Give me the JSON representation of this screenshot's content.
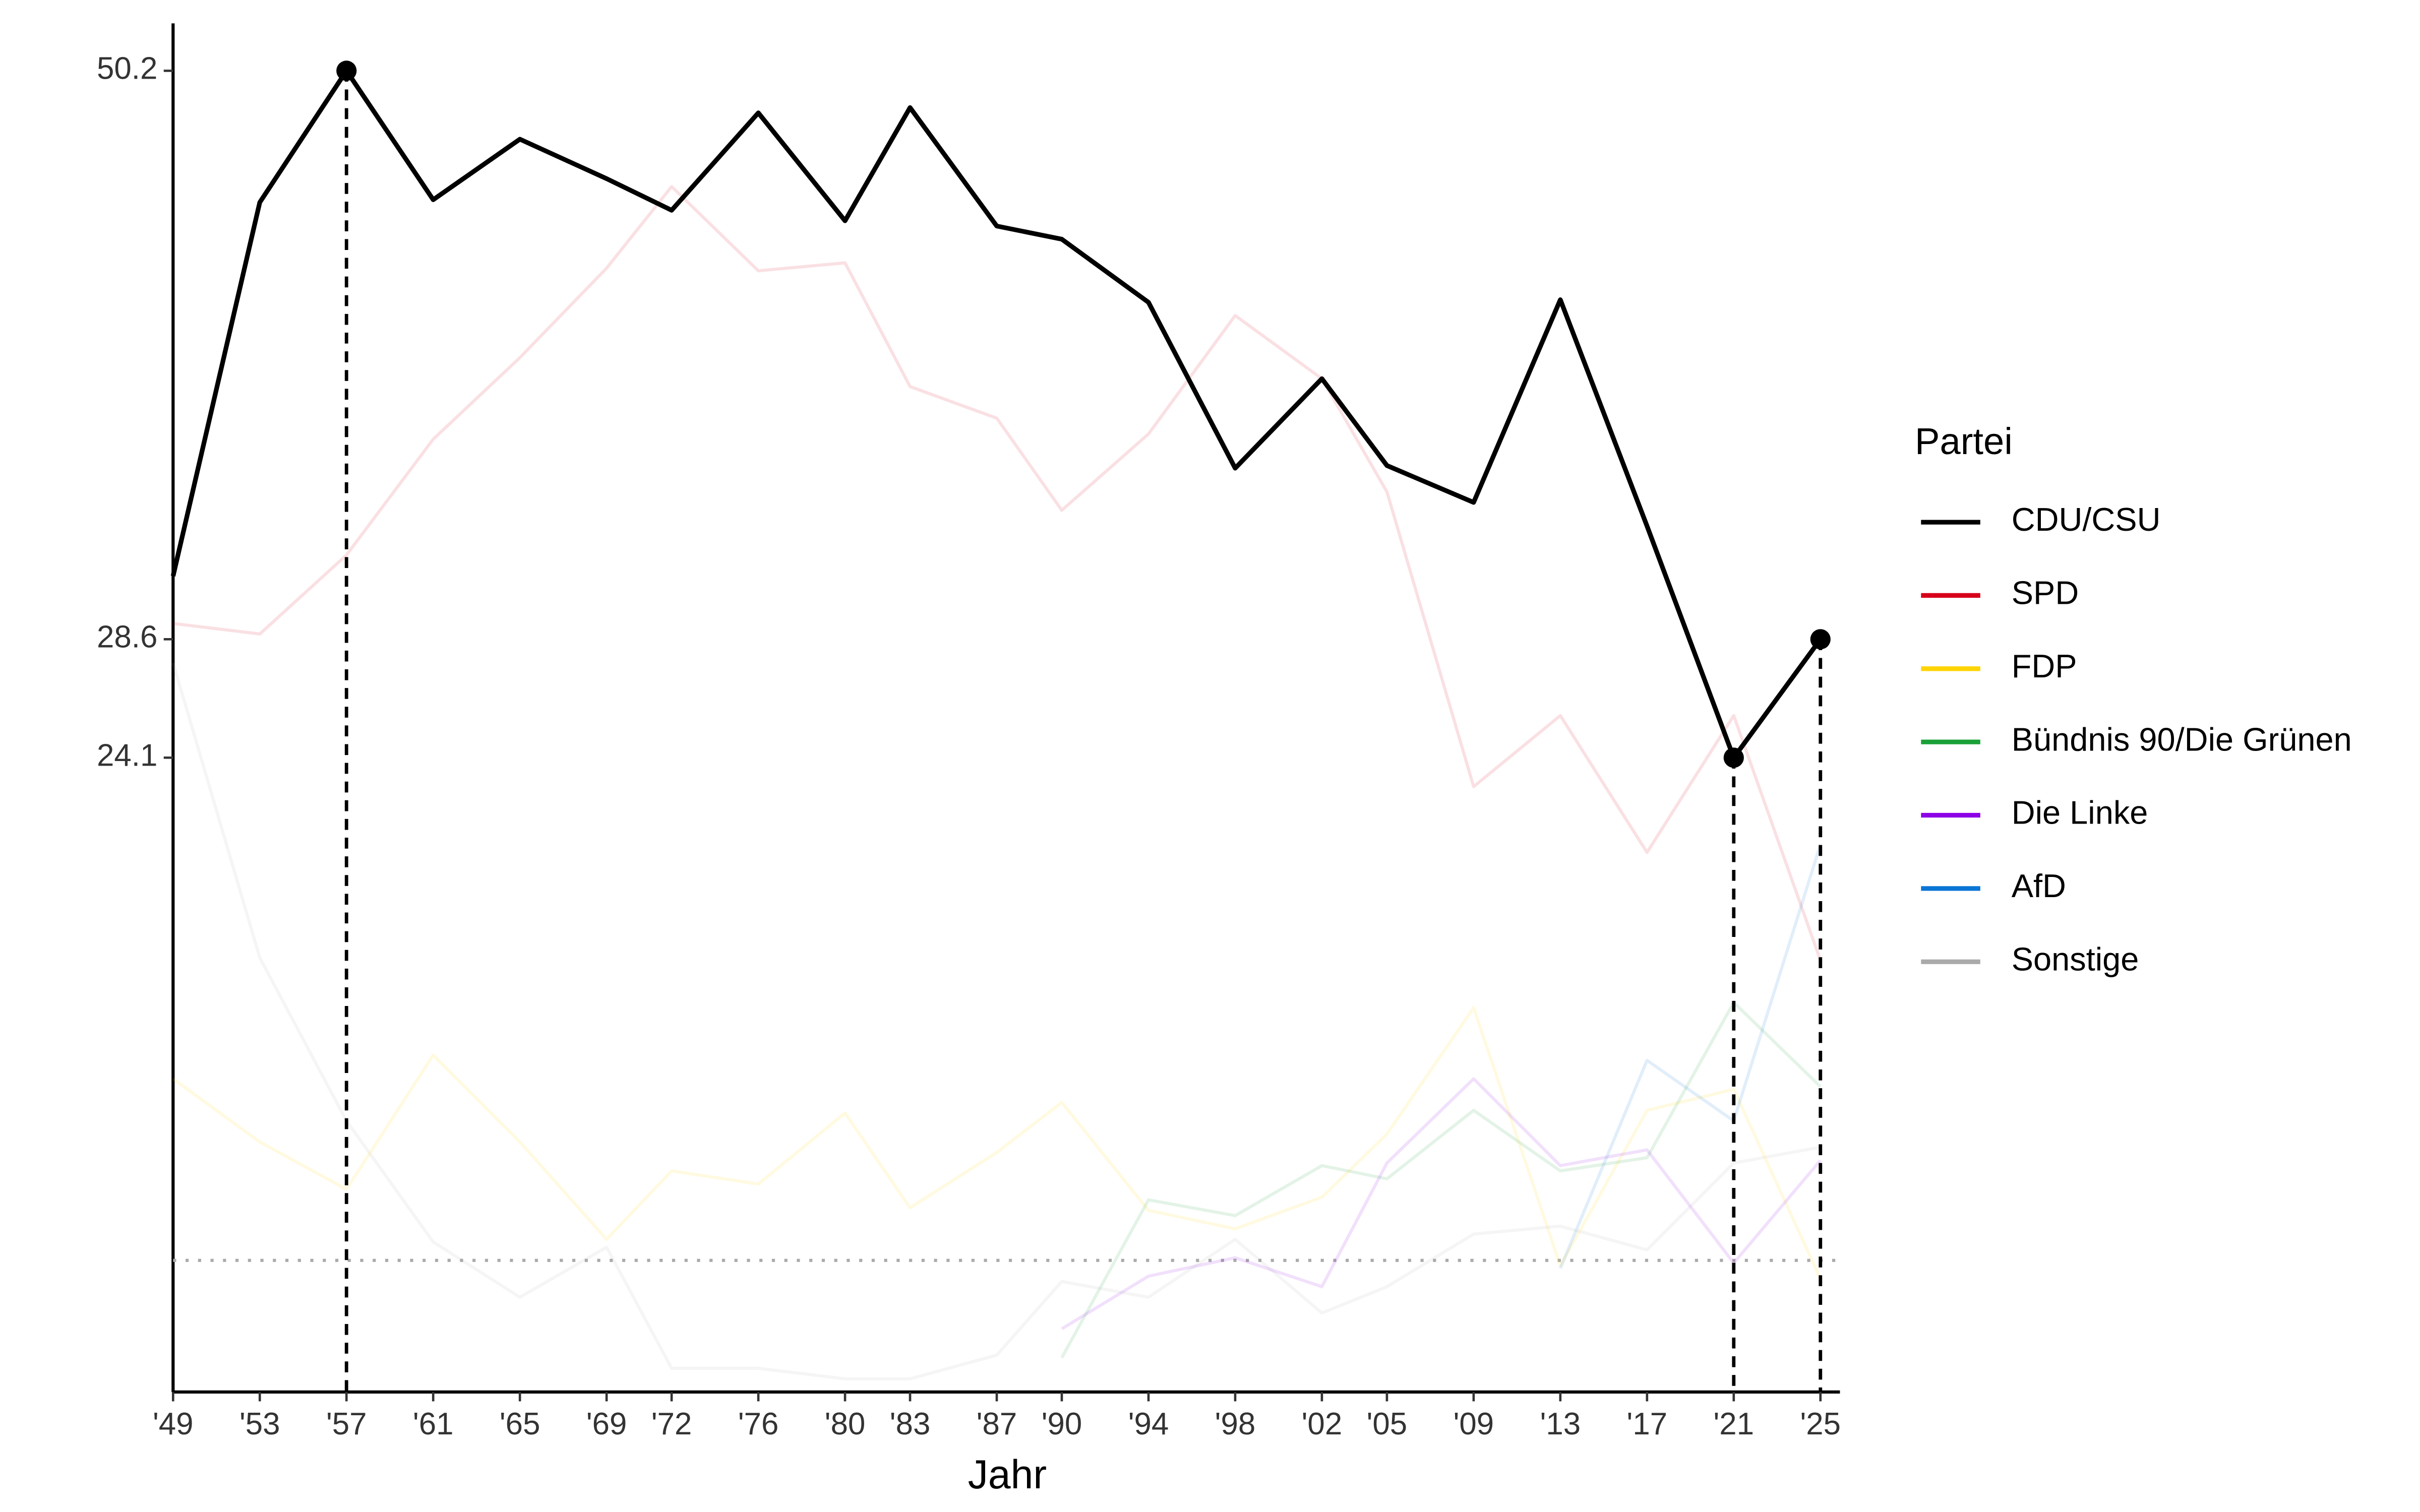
{
  "chart_data": {
    "type": "line",
    "x_label": "Jahr",
    "legend_title": "Partei",
    "legend": "right",
    "x": [
      1949,
      1953,
      1957,
      1961,
      1965,
      1969,
      1972,
      1976,
      1980,
      1983,
      1987,
      1990,
      1994,
      1998,
      2002,
      2005,
      2009,
      2013,
      2017,
      2021,
      2025
    ],
    "xlim": [
      1949,
      2025.9
    ],
    "xticks": [
      {
        "value": 1949,
        "label": "'49"
      },
      {
        "value": 1953,
        "label": "'53"
      },
      {
        "value": 1957,
        "label": "'57"
      },
      {
        "value": 1961,
        "label": "'61"
      },
      {
        "value": 1965,
        "label": "'65"
      },
      {
        "value": 1969,
        "label": "'69"
      },
      {
        "value": 1972,
        "label": "'72"
      },
      {
        "value": 1976,
        "label": "'76"
      },
      {
        "value": 1980,
        "label": "'80"
      },
      {
        "value": 1983,
        "label": "'83"
      },
      {
        "value": 1987,
        "label": "'87"
      },
      {
        "value": 1990,
        "label": "'90"
      },
      {
        "value": 1994,
        "label": "'94"
      },
      {
        "value": 1998,
        "label": "'98"
      },
      {
        "value": 2002,
        "label": "'02"
      },
      {
        "value": 2005,
        "label": "'05"
      },
      {
        "value": 2009,
        "label": "'09"
      },
      {
        "value": 2013,
        "label": "'13"
      },
      {
        "value": 2017,
        "label": "'17"
      },
      {
        "value": 2021,
        "label": "'21"
      },
      {
        "value": 2025,
        "label": "'25"
      }
    ],
    "ylim": [
      0,
      52
    ],
    "yticks": [
      24.1,
      28.6,
      50.2
    ],
    "threshold": 5,
    "highlighted": [
      2,
      19,
      20
    ],
    "series": [
      {
        "name": "CDU/CSU",
        "color": "#000000",
        "emphasis": true,
        "values": [
          31.0,
          45.2,
          50.2,
          45.3,
          47.6,
          46.1,
          44.9,
          48.6,
          44.5,
          48.8,
          44.3,
          43.8,
          41.4,
          35.1,
          38.5,
          35.2,
          33.8,
          41.5,
          32.9,
          24.1,
          28.6
        ]
      },
      {
        "name": "SPD",
        "color": "#d7001a",
        "values": [
          29.2,
          28.8,
          31.8,
          36.2,
          39.3,
          42.7,
          45.8,
          42.6,
          42.9,
          38.2,
          37.0,
          33.5,
          36.4,
          40.9,
          38.5,
          34.2,
          23.0,
          25.7,
          20.5,
          25.7,
          16.4
        ]
      },
      {
        "name": "FDP",
        "color": "#ffd400",
        "values": [
          11.9,
          9.5,
          7.7,
          12.8,
          9.5,
          5.8,
          8.4,
          7.9,
          10.6,
          7.0,
          9.1,
          11.0,
          6.9,
          6.2,
          7.4,
          9.8,
          14.6,
          4.8,
          10.7,
          11.5,
          4.3
        ]
      },
      {
        "name": "Bündnis 90/Die Grünen",
        "color": "#1aa037",
        "values": [
          null,
          null,
          null,
          null,
          null,
          null,
          null,
          null,
          null,
          null,
          null,
          1.3,
          7.3,
          6.7,
          8.6,
          8.1,
          10.7,
          8.4,
          8.9,
          14.8,
          11.6
        ]
      },
      {
        "name": "Die Linke",
        "color": "#8c00e6",
        "values": [
          null,
          null,
          null,
          null,
          null,
          null,
          null,
          null,
          null,
          null,
          null,
          2.4,
          4.4,
          5.1,
          4.0,
          8.7,
          11.9,
          8.6,
          9.2,
          4.9,
          8.8
        ]
      },
      {
        "name": "AfD",
        "color": "#0a75d4",
        "values": [
          null,
          null,
          null,
          null,
          null,
          null,
          null,
          null,
          null,
          null,
          null,
          null,
          null,
          null,
          null,
          null,
          null,
          4.7,
          12.6,
          10.3,
          20.8
        ]
      },
      {
        "name": "Sonstige",
        "color": "#aaaaaa",
        "values": [
          27.7,
          16.5,
          10.3,
          5.7,
          3.6,
          5.5,
          0.9,
          0.9,
          0.5,
          0.5,
          1.4,
          4.2,
          3.6,
          5.8,
          3.0,
          4.0,
          6.0,
          6.3,
          5.4,
          8.7,
          9.3
        ]
      }
    ]
  }
}
